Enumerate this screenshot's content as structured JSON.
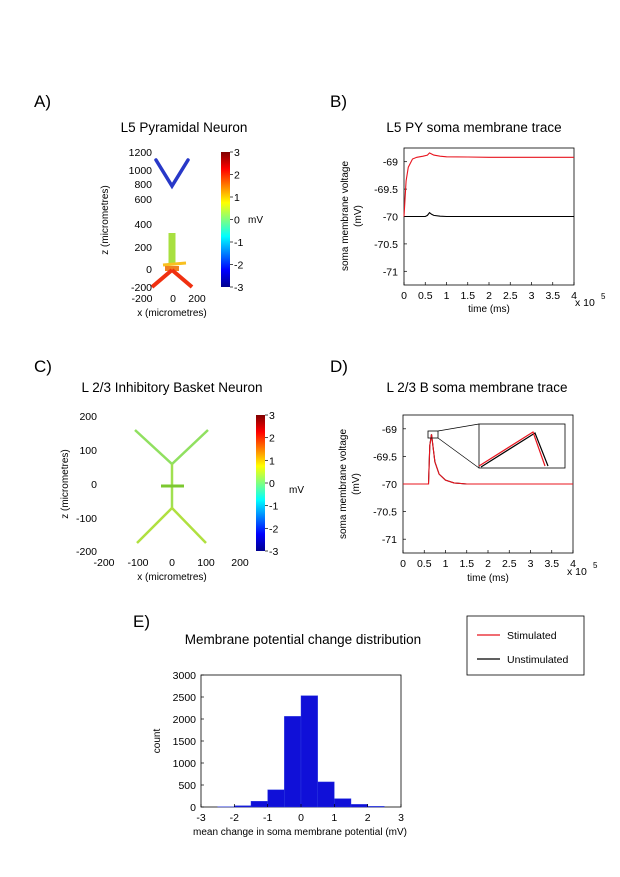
{
  "panels": {
    "A": {
      "label": "A)",
      "title": "L5 Pyramidal Neuron",
      "xlabel": "x (micrometres)",
      "ylabel": "z (micrometres)",
      "xticks": [
        "-200",
        "0",
        "200"
      ],
      "yticks": [
        "1200",
        "1000",
        "800",
        "600",
        "400",
        "200",
        "0",
        "-200"
      ],
      "colorbar_ticks": [
        "3",
        "2",
        "1",
        "0",
        "-1",
        "-2",
        "-3"
      ],
      "colorbar_unit": "mV"
    },
    "B": {
      "label": "B)",
      "title": "L5 PY  soma membrane trace",
      "ylabel1": "soma membrane voltage",
      "ylabel2": "(mV)",
      "xlabel": "time (ms)",
      "xticks": [
        "0",
        "0.5",
        "1",
        "1.5",
        "2",
        "2.5",
        "3",
        "3.5",
        "4"
      ],
      "yticks": [
        "-69",
        "-69.5",
        "-70",
        "-70.5",
        "-71"
      ],
      "exp_base": "x 10",
      "exp_power": "5"
    },
    "C": {
      "label": "C)",
      "title": "L 2/3 Inhibitory Basket Neuron",
      "xlabel": "x (micrometres)",
      "ylabel": "z (micrometres)",
      "xticks": [
        "-200",
        "-100",
        "0",
        "100",
        "200"
      ],
      "yticks": [
        "200",
        "100",
        "0",
        "-100",
        "-200"
      ],
      "colorbar_ticks": [
        "3",
        "2",
        "1",
        "0",
        "-1",
        "-2",
        "-3"
      ],
      "colorbar_unit": "mV"
    },
    "D": {
      "label": "D)",
      "title": "L 2/3 B soma membrane trace",
      "ylabel1": "soma membrane voltage",
      "ylabel2": "(mV)",
      "xlabel": "time (ms)",
      "xticks": [
        "0",
        "0.5",
        "1",
        "1.5",
        "2",
        "2.5",
        "3",
        "3.5",
        "4"
      ],
      "yticks": [
        "-69",
        "-69.5",
        "-70",
        "-70.5",
        "-71"
      ],
      "exp_base": "x 10",
      "exp_power": "5"
    },
    "E": {
      "label": "E)",
      "title": "Membrane potential change distribution",
      "xlabel": "mean change in soma membrane potential (mV)",
      "ylabel": "count",
      "xticks": [
        "-3",
        "-2",
        "-1",
        "0",
        "1",
        "2",
        "3"
      ],
      "yticks": [
        "3000",
        "2500",
        "2000",
        "1500",
        "1000",
        "500",
        "0"
      ]
    }
  },
  "legend": {
    "stimulated": "Stimulated",
    "unstimulated": "Unstimulated"
  },
  "colors": {
    "stimulated": "#e8141e",
    "unstimulated": "#000000",
    "histogram": "#1010d8"
  },
  "chart_data": [
    {
      "type": "line",
      "panel": "B",
      "title": "L5 PY  soma membrane trace",
      "xlabel": "time (ms)",
      "ylabel": "soma membrane voltage (mV)",
      "x_scale": 100000,
      "xlim": [
        0,
        4
      ],
      "ylim": [
        -71.25,
        -68.75
      ],
      "series": [
        {
          "name": "Stimulated",
          "x": [
            0,
            0.05,
            0.1,
            0.2,
            0.3,
            0.45,
            0.55,
            0.6,
            0.65,
            0.7,
            0.85,
            1,
            1.5,
            2,
            3,
            4
          ],
          "y": [
            -70,
            -69.35,
            -69.1,
            -68.95,
            -68.92,
            -68.9,
            -68.88,
            -68.84,
            -68.86,
            -68.88,
            -68.9,
            -68.91,
            -68.915,
            -68.92,
            -68.92,
            -68.92
          ]
        },
        {
          "name": "Unstimulated",
          "x": [
            0,
            0.5,
            0.55,
            0.6,
            0.65,
            0.7,
            0.85,
            1,
            2,
            4
          ],
          "y": [
            -70,
            -70,
            -69.98,
            -69.93,
            -69.96,
            -69.98,
            -69.995,
            -70,
            -70,
            -70
          ]
        }
      ]
    },
    {
      "type": "line",
      "panel": "D",
      "title": "L 2/3 B soma membrane trace",
      "xlabel": "time (ms)",
      "ylabel": "soma membrane voltage (mV)",
      "x_scale": 100000,
      "xlim": [
        0,
        4
      ],
      "ylim": [
        -71.25,
        -68.75
      ],
      "series": [
        {
          "name": "Stimulated",
          "x": [
            0,
            0.6,
            0.63,
            0.67,
            0.75,
            0.85,
            1,
            1.2,
            1.5,
            2,
            4
          ],
          "y": [
            -70,
            -70,
            -69.3,
            -69.1,
            -69.6,
            -69.82,
            -69.93,
            -69.98,
            -70,
            -70,
            -70
          ]
        },
        {
          "name": "Unstimulated",
          "x": [
            0,
            0.6,
            0.63,
            0.67,
            0.75,
            0.85,
            1,
            1.2,
            1.5,
            2,
            4
          ],
          "y": [
            -70,
            -70,
            -69.3,
            -69.1,
            -69.6,
            -69.82,
            -69.93,
            -69.98,
            -70,
            -70,
            -70
          ]
        }
      ]
    },
    {
      "type": "bar",
      "panel": "E",
      "title": "Membrane potential change distribution",
      "xlabel": "mean change in soma membrane potential (mV)",
      "ylabel": "count",
      "xlim": [
        -3,
        3
      ],
      "ylim": [
        0,
        3000
      ],
      "bin_edges": [
        -2.5,
        -2,
        -1.5,
        -1,
        -0.5,
        0,
        0.5,
        1,
        1.5,
        2,
        2.5
      ],
      "values": [
        5,
        30,
        130,
        390,
        2060,
        2530,
        570,
        190,
        60,
        15
      ]
    }
  ]
}
